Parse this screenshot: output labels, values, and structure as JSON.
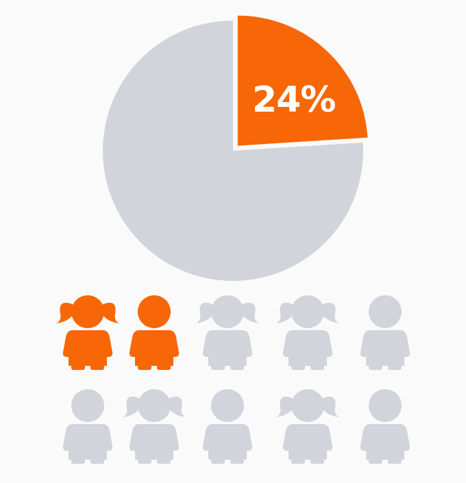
{
  "chart_data": {
    "type": "pie",
    "slices": [
      {
        "value": 24,
        "color": "#f76707"
      },
      {
        "value": 76,
        "color": "#d2d4dc"
      }
    ],
    "label": "24%",
    "icon_array": {
      "highlighted": 2,
      "total": 10,
      "highlight_color": "#f76707",
      "base_color": "#d2d4dc",
      "icons": [
        "girl-icon",
        "boy-icon",
        "girl-icon",
        "girl-icon",
        "boy-icon",
        "boy-icon",
        "girl-icon",
        "boy-icon",
        "girl-icon",
        "boy-icon"
      ]
    }
  }
}
